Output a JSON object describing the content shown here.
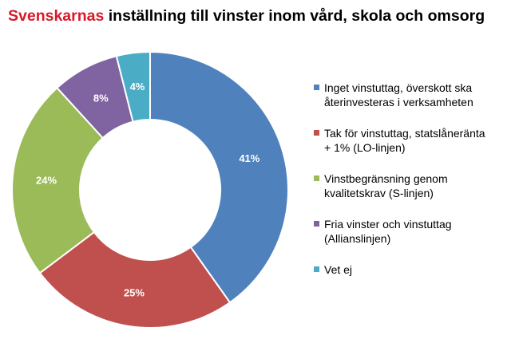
{
  "title": {
    "highlight": "Svenskarnas",
    "rest": " inställning till vinster inom vård, skola och omsorg"
  },
  "chart_data": {
    "type": "pie",
    "categories": [
      "Inget vinstuttag, överskott ska återinvesteras i verksamheten",
      "Tak för vinstuttag, statslåneränta + 1% (LO-linjen)",
      "Vinstbegränsning genom kvalitetskrav (S-linjen)",
      "Fria vinster och vinstuttag (Allianslinjen)",
      "Vet ej"
    ],
    "values": [
      41,
      25,
      24,
      8,
      4
    ],
    "labels": [
      "41%",
      "25%",
      "24%",
      "8%",
      "4%"
    ],
    "colors": [
      "#4f81bd",
      "#c0504d",
      "#9bbb59",
      "#8064a2",
      "#4bacc6"
    ],
    "legend_position": "right",
    "donut": true
  },
  "legend": {
    "items": [
      {
        "text": "Inget vinstuttag, överskott ska\nåterinvesteras i verksamheten"
      },
      {
        "text": "Tak för vinstuttag, statslåneränta\n+ 1% (LO-linjen)"
      },
      {
        "text": "Vinstbegränsning genom\nkvalitetskrav (S-linjen)"
      },
      {
        "text": "Fria vinster och vinstuttag\n(Allianslinjen)"
      },
      {
        "text": "Vet ej"
      }
    ]
  }
}
